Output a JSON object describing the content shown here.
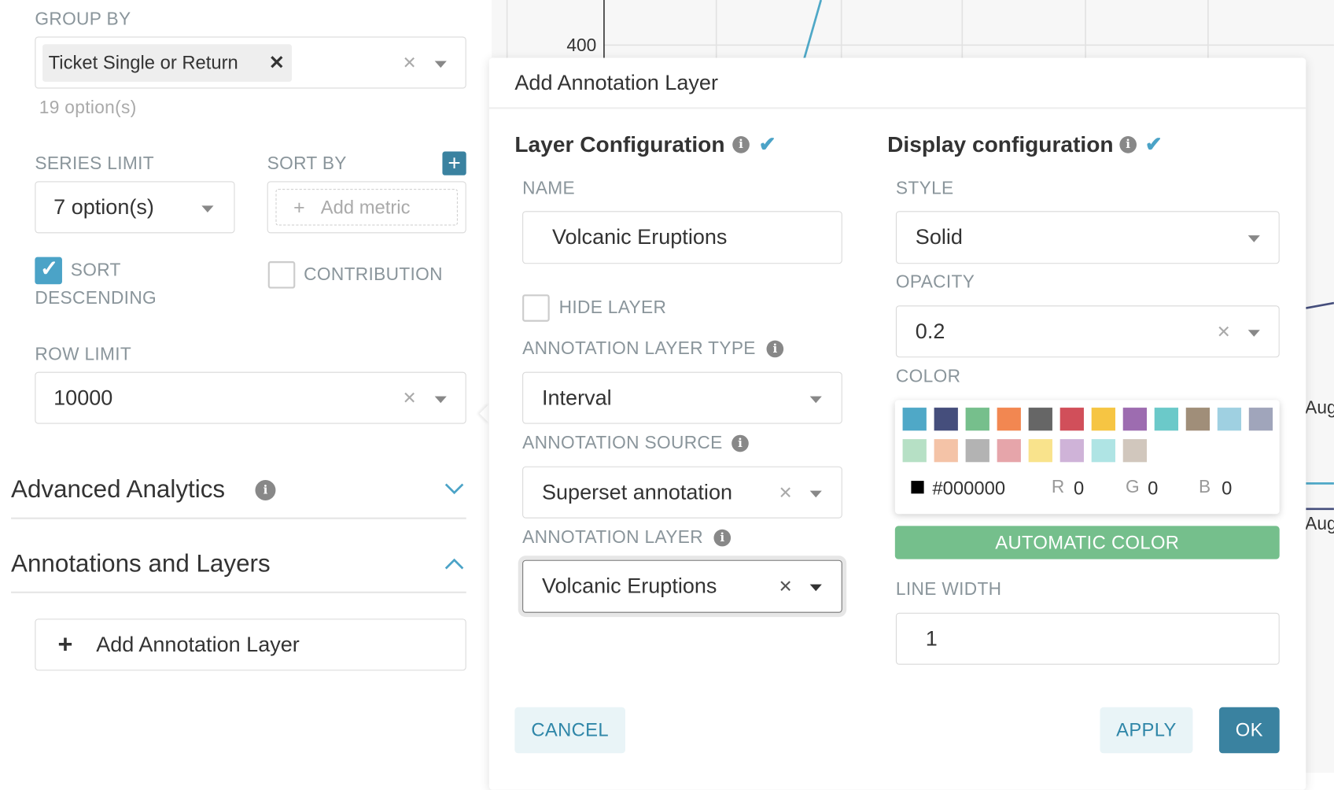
{
  "left": {
    "group_by": {
      "label": "GROUP BY",
      "tag": "Ticket Single or Return",
      "count": "19 option(s)"
    },
    "series_limit": {
      "label": "SERIES LIMIT",
      "value": "7 option(s)"
    },
    "sort_by": {
      "label": "SORT BY",
      "placeholder": "Add metric"
    },
    "sort_descending": {
      "label1": "SORT",
      "label2": "DESCENDING",
      "checked": true
    },
    "contribution": {
      "label": "CONTRIBUTION",
      "checked": false
    },
    "row_limit": {
      "label": "ROW LIMIT",
      "value": "10000"
    },
    "advanced_analytics": "Advanced Analytics",
    "annotations": "Annotations and Layers",
    "add_layer": "Add Annotation Layer"
  },
  "chart": {
    "y_tick": "400",
    "x_tick": "Aug"
  },
  "modal": {
    "title": "Add Annotation Layer",
    "layer_config": {
      "title": "Layer Configuration",
      "name_label": "NAME",
      "name_value": "Volcanic Eruptions",
      "hide_label": "HIDE LAYER",
      "hide_checked": false,
      "type_label": "ANNOTATION LAYER TYPE",
      "type_value": "Interval",
      "source_label": "ANNOTATION SOURCE",
      "source_value": "Superset annotation",
      "layer_label": "ANNOTATION LAYER",
      "layer_value": "Volcanic Eruptions"
    },
    "display_config": {
      "title": "Display configuration",
      "style_label": "STYLE",
      "style_value": "Solid",
      "opacity_label": "OPACITY",
      "opacity_value": "0.2",
      "color_label": "COLOR",
      "palette": [
        "#4fa8c7",
        "#454e7c",
        "#76bf8c",
        "#f28751",
        "#666666",
        "#d14f5a",
        "#f6c543",
        "#9d6cb0",
        "#6bc9c9",
        "#a08e79",
        "#9fd0e1",
        "#a0a5bb",
        "#b6e0c5",
        "#f4c3a7",
        "#b3b3b3",
        "#e6a5aa",
        "#f9e38c",
        "#cfb3d8",
        "#afe4e4",
        "#d1c7bd"
      ],
      "hex": "#000000",
      "r_label": "R",
      "r": "0",
      "g_label": "G",
      "g": "0",
      "b_label": "B",
      "b": "0",
      "auto_color": "AUTOMATIC COLOR",
      "line_width_label": "LINE WIDTH",
      "line_width_value": "1"
    },
    "cancel": "CANCEL",
    "apply": "APPLY",
    "ok": "OK"
  },
  "colors": {
    "accent": "#4ba3c7",
    "primary_button": "#3a82a0",
    "auto_color": "#75bf8c"
  }
}
